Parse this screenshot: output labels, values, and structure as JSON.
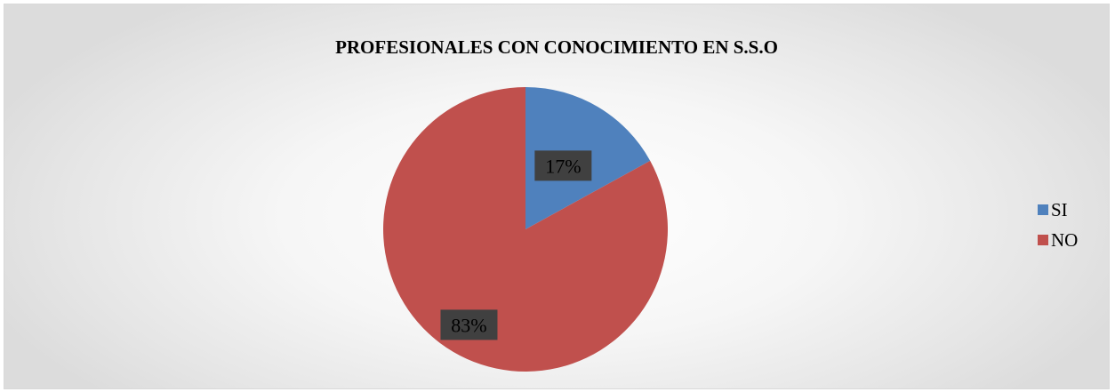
{
  "chart_data": {
    "type": "pie",
    "title": "PROFESIONALES CON CONOCIMIENTO EN S.S.O",
    "categories": [
      "SI",
      "NO"
    ],
    "values": [
      17,
      83
    ],
    "data_labels": [
      "17%",
      "83%"
    ],
    "colors": [
      "#4f81bd",
      "#c0504d"
    ],
    "legend_position": "right",
    "start_angle_deg": 0,
    "direction": "clockwise"
  }
}
